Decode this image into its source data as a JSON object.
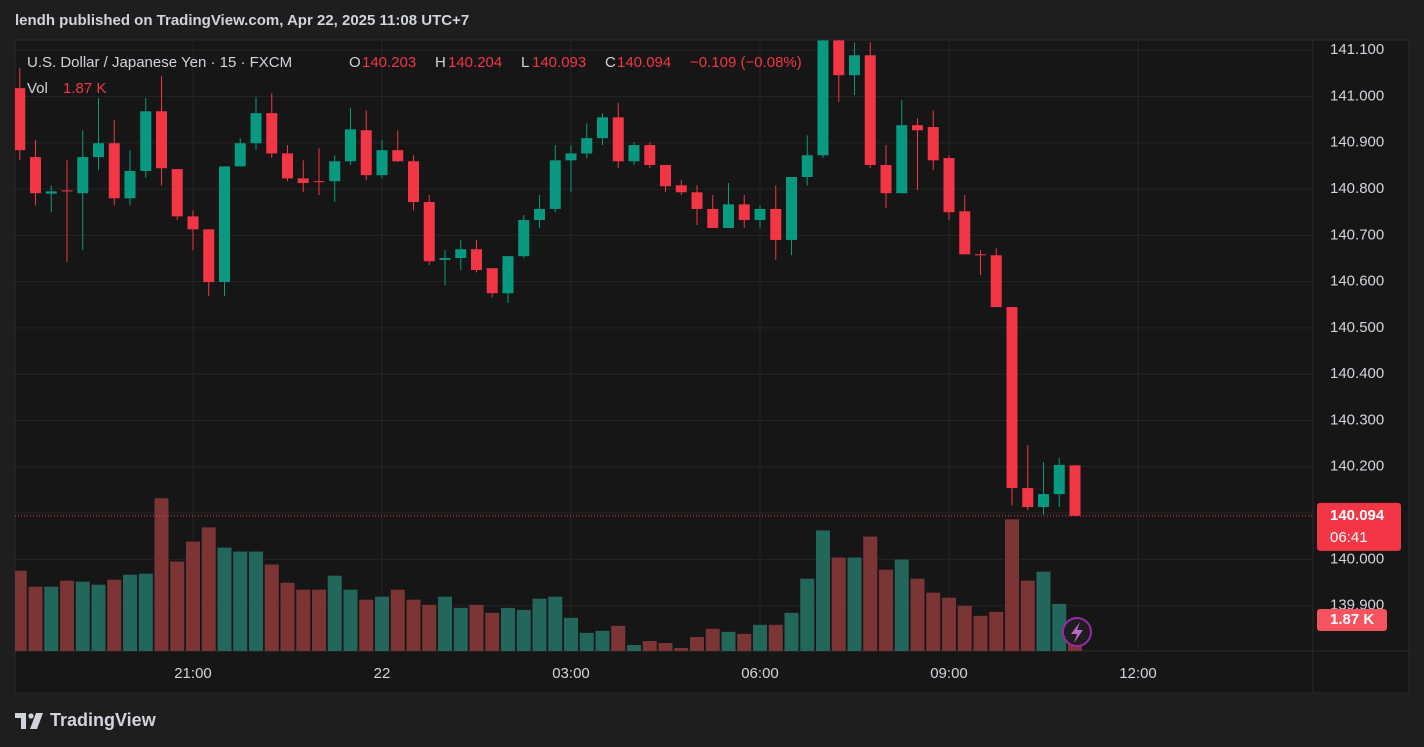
{
  "publisher_line": "lendh published on TradingView.com, Apr 22, 2025 11:08 UTC+7",
  "brand": "TradingView",
  "chart_data": {
    "type": "candlestick",
    "title": "U.S. Dollar / Japanese Yen · 15 · FXCM",
    "ohlc_letters": [
      "O",
      "H",
      "L",
      "C"
    ],
    "ohlc": [
      140.203,
      140.204,
      140.093,
      140.094
    ],
    "change": "−0.109 (−0.08%)",
    "volume_title": "Vol",
    "volume_value": "1.87 K",
    "countdown": "06:41",
    "up_color": "#089981",
    "down_color": "#f23645",
    "volume_up_color": "#22665c",
    "volume_down_color": "#7c3535",
    "grid": true,
    "categories": [
      null,
      null,
      null,
      null,
      null,
      null,
      null,
      null,
      null,
      null,
      null,
      "21:00",
      null,
      null,
      null,
      null,
      null,
      null,
      null,
      null,
      null,
      null,
      null,
      "22",
      null,
      null,
      null,
      null,
      null,
      null,
      null,
      null,
      null,
      null,
      null,
      "03:00",
      null,
      null,
      null,
      null,
      null,
      null,
      null,
      null,
      null,
      null,
      null,
      "06:00",
      null,
      null,
      null,
      null,
      null,
      null,
      null,
      null,
      null,
      null,
      null,
      "09:00",
      null,
      null,
      null,
      null,
      null,
      null,
      null,
      null,
      null,
      null,
      null,
      "12:00",
      null,
      null,
      null,
      null,
      null,
      null,
      null,
      null,
      null,
      null,
      null
    ],
    "open": [
      141.018,
      140.869,
      140.79,
      140.797,
      140.791,
      140.869,
      140.899,
      140.78,
      140.839,
      140.968,
      140.843,
      140.741,
      140.713,
      140.599,
      140.849,
      140.899,
      140.964,
      140.877,
      140.823,
      140.817,
      140.817,
      140.86,
      140.927,
      140.83,
      140.884,
      140.86,
      140.772,
      140.647,
      140.651,
      140.67,
      140.629,
      140.575,
      140.655,
      140.733,
      140.757,
      140.862,
      140.877,
      140.91,
      140.955,
      140.86,
      140.895,
      140.852,
      140.808,
      140.793,
      140.757,
      140.716,
      140.767,
      140.733,
      140.757,
      140.69,
      140.826,
      140.873,
      141.121,
      141.046,
      141.089,
      140.852,
      140.791,
      140.938,
      140.934,
      140.867,
      140.752,
      140.659,
      140.657,
      140.545,
      140.154,
      140.113,
      140.141,
      140.203,
      null,
      null,
      null,
      null,
      null,
      null,
      null,
      null,
      null,
      null,
      null,
      null,
      null,
      null,
      null
    ],
    "high": [
      141.061,
      140.906,
      140.808,
      140.862,
      140.927,
      140.997,
      140.949,
      140.884,
      140.997,
      141.044,
      140.843,
      140.754,
      140.713,
      140.849,
      140.91,
      140.998,
      141.007,
      140.895,
      140.862,
      140.888,
      140.873,
      140.975,
      140.97,
      140.906,
      140.927,
      140.873,
      140.787,
      140.668,
      140.69,
      140.69,
      140.629,
      140.655,
      140.744,
      140.787,
      140.895,
      140.895,
      140.942,
      140.964,
      140.986,
      140.901,
      140.901,
      140.852,
      140.819,
      140.808,
      140.787,
      140.813,
      140.787,
      140.765,
      140.808,
      140.826,
      140.916,
      141.122,
      141.122,
      141.117,
      141.117,
      140.895,
      140.992,
      140.953,
      140.97,
      140.873,
      140.787,
      140.668,
      140.672,
      140.545,
      140.247,
      140.21,
      140.219,
      140.204,
      null,
      null,
      null,
      null,
      null,
      null,
      null,
      null,
      null,
      null,
      null,
      null,
      null,
      null,
      null
    ],
    "low": [
      140.862,
      140.765,
      140.75,
      140.642,
      140.668,
      140.841,
      140.765,
      140.765,
      140.824,
      140.808,
      140.733,
      140.668,
      140.569,
      140.569,
      140.849,
      140.884,
      140.867,
      140.817,
      140.793,
      140.787,
      140.772,
      140.852,
      140.819,
      140.823,
      140.858,
      140.754,
      140.636,
      140.592,
      140.625,
      140.62,
      140.566,
      140.554,
      140.651,
      140.716,
      140.75,
      140.793,
      140.867,
      140.895,
      140.845,
      140.852,
      140.845,
      140.793,
      140.787,
      140.722,
      140.716,
      140.716,
      140.716,
      140.716,
      140.647,
      140.657,
      140.808,
      140.867,
      140.988,
      141.003,
      140.845,
      140.759,
      140.791,
      140.798,
      140.841,
      140.733,
      140.659,
      140.614,
      140.545,
      140.117,
      140.106,
      140.096,
      140.113,
      140.093,
      null,
      null,
      null,
      null,
      null,
      null,
      null,
      null,
      null,
      null,
      null,
      null,
      null,
      null,
      null
    ],
    "close": [
      140.884,
      140.791,
      140.795,
      140.795,
      140.869,
      140.899,
      140.78,
      140.839,
      140.968,
      140.845,
      140.741,
      140.713,
      140.599,
      140.849,
      140.899,
      140.964,
      140.877,
      140.823,
      140.813,
      140.815,
      140.86,
      140.929,
      140.83,
      140.884,
      140.86,
      140.772,
      140.644,
      140.651,
      140.67,
      140.625,
      140.575,
      140.655,
      140.733,
      140.757,
      140.862,
      140.877,
      140.91,
      140.955,
      140.86,
      140.895,
      140.852,
      140.806,
      140.793,
      140.757,
      140.716,
      140.767,
      140.733,
      140.757,
      140.69,
      140.826,
      140.873,
      141.121,
      141.046,
      141.089,
      140.852,
      140.791,
      140.938,
      140.927,
      140.862,
      140.75,
      140.659,
      140.657,
      140.545,
      140.154,
      140.113,
      140.141,
      140.204,
      140.094,
      null,
      null,
      null,
      null,
      null,
      null,
      null,
      null,
      null,
      null,
      null,
      null,
      null,
      null,
      null
    ],
    "volume": [
      4.82,
      3.86,
      3.86,
      4.22,
      4.16,
      3.98,
      4.28,
      4.58,
      4.64,
      9.17,
      5.37,
      6.57,
      7.42,
      6.21,
      5.97,
      5.97,
      5.19,
      4.1,
      3.68,
      3.68,
      4.52,
      3.68,
      3.08,
      3.26,
      3.68,
      3.08,
      2.77,
      3.26,
      2.59,
      2.77,
      2.29,
      2.59,
      2.47,
      3.14,
      3.26,
      1.99,
      1.09,
      1.21,
      1.51,
      0.36,
      0.6,
      0.48,
      0.18,
      0.84,
      1.33,
      1.15,
      1.03,
      1.57,
      1.57,
      2.29,
      4.34,
      7.24,
      5.61,
      5.61,
      6.87,
      4.88,
      5.49,
      4.34,
      3.5,
      3.2,
      2.71,
      2.11,
      2.35,
      7.9,
      4.22,
      4.76,
      2.83,
      1.87,
      null,
      null,
      null,
      null,
      null,
      null,
      null,
      null,
      null,
      null,
      null,
      null,
      null,
      null,
      null
    ],
    "ylim": [
      139.802,
      141.122
    ],
    "yticks": [
      {
        "value": 139.9,
        "label": "139.900"
      },
      {
        "value": 140.0,
        "label": "140.000"
      },
      {
        "value": 140.1,
        "label": "140.100"
      },
      {
        "value": 140.2,
        "label": "140.200"
      },
      {
        "value": 140.3,
        "label": "140.300"
      },
      {
        "value": 140.4,
        "label": "140.400"
      },
      {
        "value": 140.5,
        "label": "140.500"
      },
      {
        "value": 140.6,
        "label": "140.600"
      },
      {
        "value": 140.7,
        "label": "140.700"
      },
      {
        "value": 140.8,
        "label": "140.800"
      },
      {
        "value": 140.9,
        "label": "140.900"
      },
      {
        "value": 141.0,
        "label": "141.000"
      },
      {
        "value": 141.1,
        "label": "141.100"
      }
    ]
  }
}
